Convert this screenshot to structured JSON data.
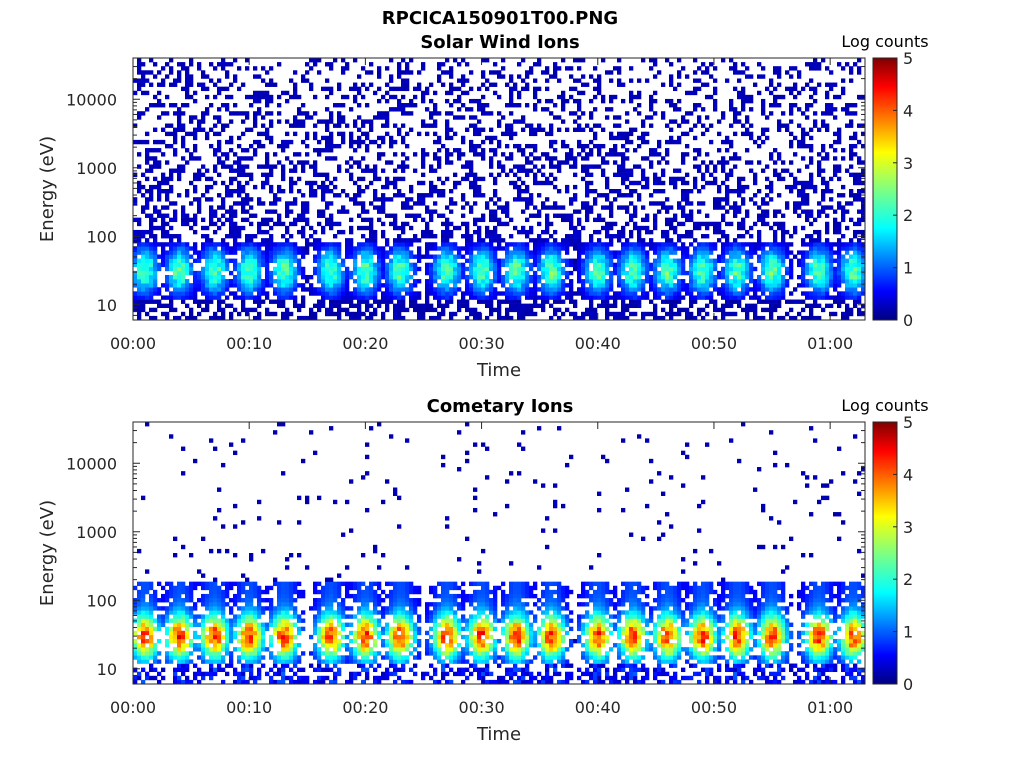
{
  "figure_title": "RPCICA150901T00.PNG",
  "chart_data": [
    {
      "type": "heatmap",
      "title": "Solar Wind Ions",
      "xlabel": "Time",
      "ylabel": "Energy (eV)",
      "yscale": "log",
      "ylim": [
        6,
        40000
      ],
      "xlim": [
        "00:00",
        "01:03"
      ],
      "xticks": [
        "00:00",
        "00:10",
        "00:20",
        "00:30",
        "00:40",
        "00:50",
        "01:00"
      ],
      "yticks": [
        "10",
        "100",
        "1000",
        "10000"
      ],
      "colorbar": {
        "label": "Log counts",
        "range": [
          0,
          5
        ],
        "ticks": [
          "0",
          "1",
          "2",
          "3",
          "4",
          "5"
        ],
        "colormap": "jet"
      },
      "description_values": {
        "burst_peak_minutes": [
          1,
          4,
          7,
          10,
          13,
          17,
          20,
          23,
          27,
          30,
          33,
          36,
          40,
          43,
          46,
          49,
          52,
          55,
          59,
          62
        ],
        "band_energy_eV": [
          20,
          50
        ],
        "background_energy_eV": [
          100,
          30000
        ],
        "burst_peak_log_counts": 2.5,
        "background_log_counts": 0.2
      }
    },
    {
      "type": "heatmap",
      "title": "Cometary Ions",
      "xlabel": "Time",
      "ylabel": "Energy (eV)",
      "yscale": "log",
      "ylim": [
        6,
        40000
      ],
      "xlim": [
        "00:00",
        "01:03"
      ],
      "xticks": [
        "00:00",
        "00:10",
        "00:20",
        "00:30",
        "00:40",
        "00:50",
        "01:00"
      ],
      "yticks": [
        "10",
        "100",
        "1000",
        "10000"
      ],
      "colorbar": {
        "label": "Log counts",
        "range": [
          0,
          5
        ],
        "ticks": [
          "0",
          "1",
          "2",
          "3",
          "4",
          "5"
        ],
        "colormap": "jet"
      },
      "description_values": {
        "burst_peak_minutes": [
          1,
          4,
          7,
          10,
          13,
          17,
          20,
          23,
          27,
          30,
          33,
          36,
          40,
          43,
          46,
          49,
          52,
          55,
          59,
          62
        ],
        "band_energy_eV": [
          15,
          150
        ],
        "burst_peak_log_counts": 3.7,
        "sparse_high_energy_log_counts": 0.2
      }
    }
  ]
}
